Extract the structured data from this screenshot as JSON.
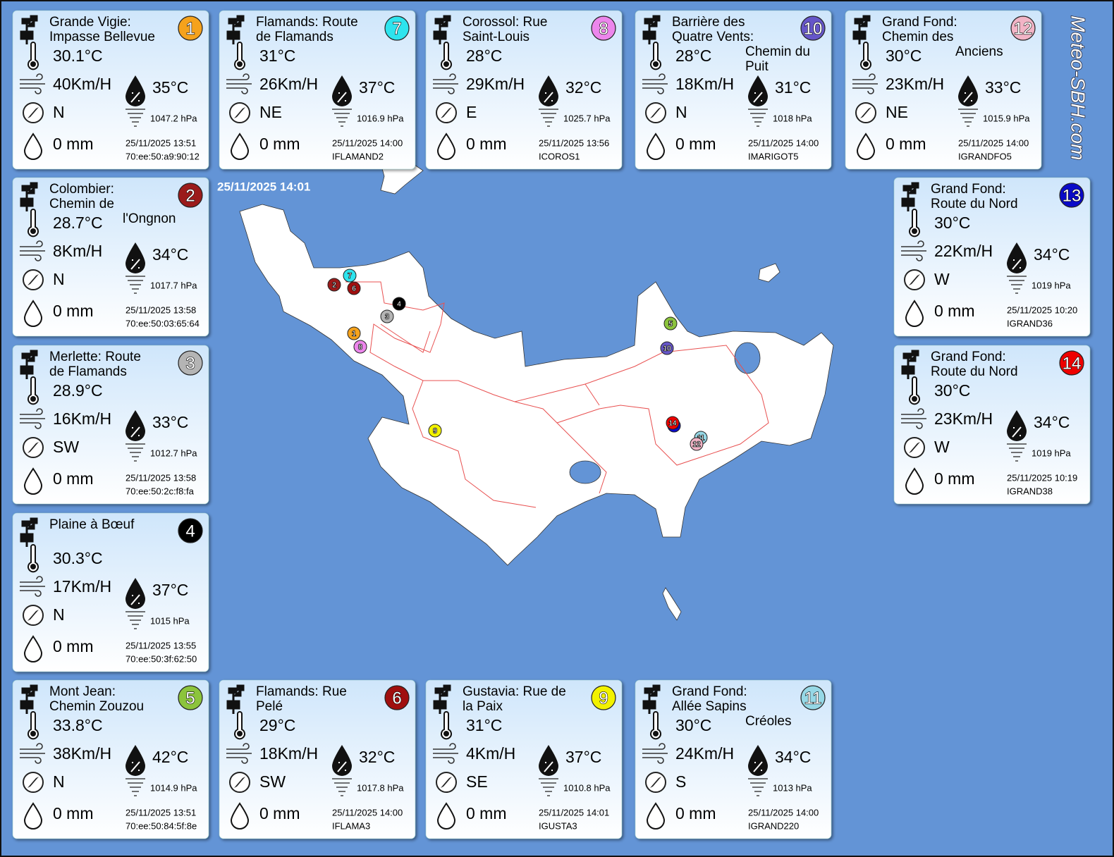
{
  "timestamp": "25/11/2025 14:01",
  "brand": "Meteo-SBH.com",
  "stations": [
    {
      "number": "1",
      "color": "#f5a21c",
      "name": [
        "Grande Vigie:",
        "Impasse Bellevue"
      ],
      "temp": "30.1°C",
      "wind": "40Km/H",
      "feels": "35°C",
      "dir": "N",
      "pressure": "1047.2 hPa",
      "rain": "0 mm",
      "date": "25/11/2025 13:51",
      "id": "70:ee:50:a9:90:12"
    },
    {
      "number": "2",
      "color": "#9b1b1b",
      "name": [
        "Colombier:",
        "Chemin de",
        "l'Ongnon"
      ],
      "temp": "28.7°C",
      "wind": "8Km/H",
      "feels": "34°C",
      "dir": "N",
      "pressure": "1017.7 hPa",
      "rain": "0 mm",
      "date": "25/11/2025 13:58",
      "id": "70:ee:50:03:65:64"
    },
    {
      "number": "3",
      "color": "#b4b4b4",
      "name": [
        "Merlette: Route",
        "de Flamands"
      ],
      "temp": "28.9°C",
      "wind": "16Km/H",
      "feels": "33°C",
      "dir": "SW",
      "pressure": "1012.7 hPa",
      "rain": "0 mm",
      "date": "25/11/2025 13:58",
      "id": "70:ee:50:2c:f8:fa"
    },
    {
      "number": "4",
      "color": "#000000",
      "name": [
        "Plaine à Bœuf"
      ],
      "temp": "30.3°C",
      "wind": "17Km/H",
      "feels": "37°C",
      "dir": "N",
      "pressure": "1015 hPa",
      "rain": "0 mm",
      "date": "25/11/2025 13:55",
      "id": "70:ee:50:3f:62:50"
    },
    {
      "number": "5",
      "color": "#8cc43c",
      "name": [
        "Mont Jean:",
        "Chemin Zouzou"
      ],
      "temp": "33.8°C",
      "wind": "38Km/H",
      "feels": "42°C",
      "dir": "N",
      "pressure": "1014.9 hPa",
      "rain": "0 mm",
      "date": "25/11/2025 13:51",
      "id": "70:ee:50:84:5f:8e"
    },
    {
      "number": "6",
      "color": "#a00f0f",
      "name": [
        "Flamands: Rue",
        "Pelé"
      ],
      "temp": "29°C",
      "wind": "18Km/H",
      "feels": "32°C",
      "dir": "SW",
      "pressure": "1017.8 hPa",
      "rain": "0 mm",
      "date": "25/11/2025 14:00",
      "id": "IFLAMA3"
    },
    {
      "number": "7",
      "color": "#2ee4ee",
      "name": [
        "Flamands: Route",
        "de Flamands"
      ],
      "temp": "31°C",
      "wind": "26Km/H",
      "feels": "37°C",
      "dir": "NE",
      "pressure": "1016.9 hPa",
      "rain": "0 mm",
      "date": "25/11/2025 14:00",
      "id": "IFLAMAND2"
    },
    {
      "number": "8",
      "color": "#ec86ec",
      "name": [
        "Corossol: Rue",
        "Saint-Louis"
      ],
      "temp": "28°C",
      "wind": "29Km/H",
      "feels": "32°C",
      "dir": "E",
      "pressure": "1025.7 hPa",
      "rain": "0 mm",
      "date": "25/11/2025 13:56",
      "id": "ICOROS1"
    },
    {
      "number": "9",
      "color": "#f2f200",
      "name": [
        "Gustavia: Rue de",
        "la Paix"
      ],
      "temp": "31°C",
      "wind": "4Km/H",
      "feels": "37°C",
      "dir": "SE",
      "pressure": "1010.8 hPa",
      "rain": "0 mm",
      "date": "25/11/2025 14:01",
      "id": "IGUSTA3"
    },
    {
      "number": "10",
      "color": "#6656c8",
      "name": [
        "Barrière des",
        "Quatre Vents:",
        "Chemin du",
        "Puit"
      ],
      "temp": "28°C",
      "wind": "18Km/H",
      "feels": "31°C",
      "dir": "N",
      "pressure": "1018 hPa",
      "rain": "0 mm",
      "date": "25/11/2025 14:00",
      "id": "IMARIGOT5"
    },
    {
      "number": "11",
      "color": "#96d8e6",
      "name": [
        "Grand Fond:",
        "Allée Sapins",
        "Créoles"
      ],
      "temp": "30°C",
      "wind": "24Km/H",
      "feels": "34°C",
      "dir": "S",
      "pressure": "1013 hPa",
      "rain": "0 mm",
      "date": "25/11/2025 14:00",
      "id": "IGRAND220"
    },
    {
      "number": "12",
      "color": "#f2b4c6",
      "name": [
        "Grand Fond:",
        "Chemin des",
        "Anciens"
      ],
      "temp": "30°C",
      "wind": "23Km/H",
      "feels": "33°C",
      "dir": "NE",
      "pressure": "1015.9 hPa",
      "rain": "0 mm",
      "date": "25/11/2025 14:00",
      "id": "IGRANDFO5"
    },
    {
      "number": "13",
      "color": "#0a0ac8",
      "name": [
        "Grand Fond:",
        "Route du Nord"
      ],
      "temp": "30°C",
      "wind": "22Km/H",
      "feels": "34°C",
      "dir": "W",
      "pressure": "1019 hPa",
      "rain": "0 mm",
      "date": "25/11/2025 10:20",
      "id": "IGRAND36"
    },
    {
      "number": "14",
      "color": "#ee0000",
      "name": [
        "Grand Fond:",
        "Route du Nord"
      ],
      "temp": "30°C",
      "wind": "23Km/H",
      "feels": "34°C",
      "dir": "W",
      "pressure": "1019 hPa",
      "rain": "0 mm",
      "date": "25/11/2025 10:19",
      "id": "IGRAND38"
    }
  ]
}
